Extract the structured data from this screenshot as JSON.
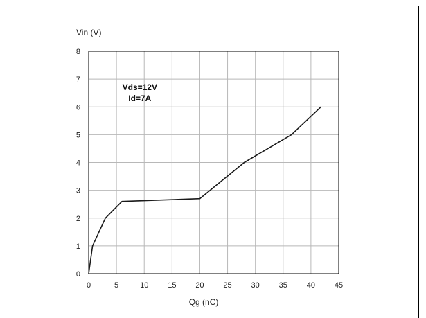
{
  "chart_data": {
    "type": "line",
    "xlabel": "Qg (nC)",
    "ylabel": "Vin (V)",
    "xlim": [
      0,
      45
    ],
    "ylim": [
      0,
      8
    ],
    "x_ticks": [
      0,
      5,
      10,
      15,
      20,
      25,
      30,
      35,
      40,
      45
    ],
    "y_ticks": [
      0,
      1,
      2,
      3,
      4,
      5,
      6,
      7,
      8
    ],
    "grid": true,
    "legend": "none",
    "annotations": [
      "Vds=12V",
      "Id=7A"
    ],
    "series": [
      {
        "x": [
          0,
          0.7,
          3,
          6,
          20,
          28,
          36.5,
          41.8
        ],
        "y": [
          0,
          1,
          2,
          2.6,
          2.7,
          4,
          5,
          6
        ]
      }
    ],
    "colors": {
      "line": "#1a1a1a",
      "grid": "#b8b8b8",
      "axis": "#000000",
      "frame": "#000000"
    }
  }
}
